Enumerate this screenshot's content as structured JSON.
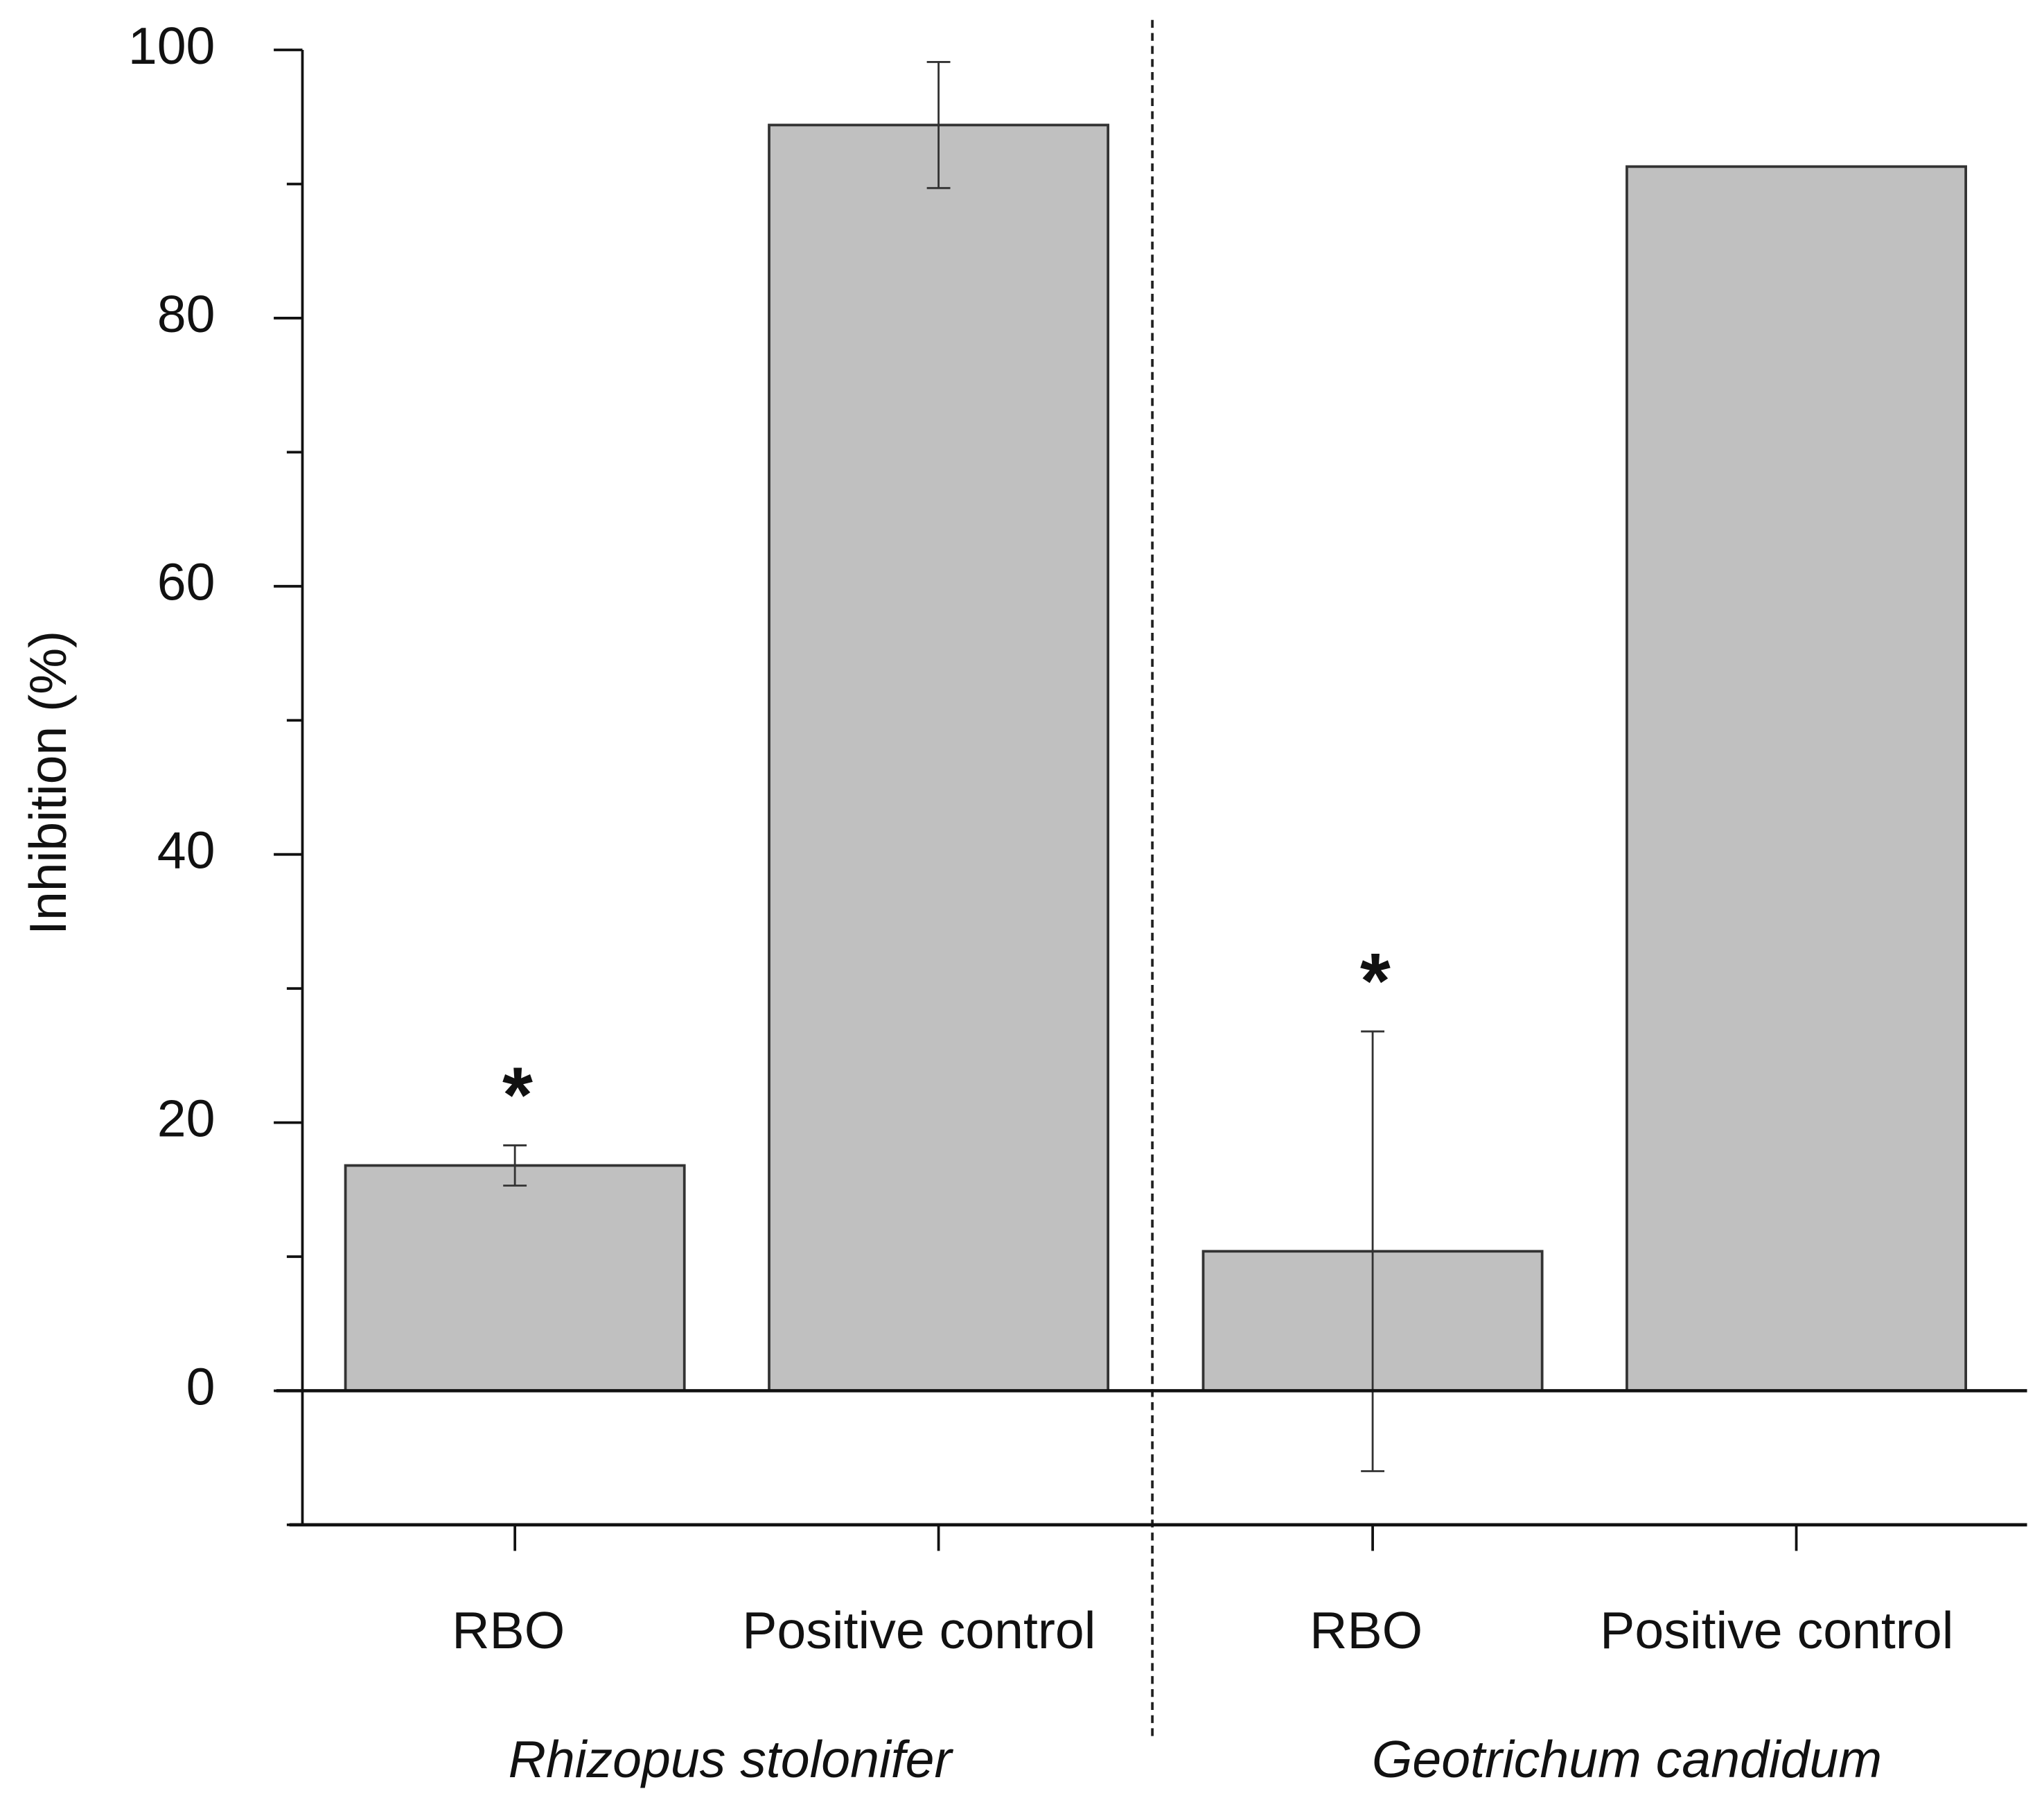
{
  "chart_data": {
    "type": "bar",
    "y_label": "Inhibition (%)",
    "categories": [
      "RBO",
      "Positive control",
      "RBO",
      "Positive control"
    ],
    "groups": [
      "Rhizopus stolonifer",
      "Geotrichum candidum"
    ],
    "values": [
      16.8,
      94.4,
      10.4,
      91.3
    ],
    "errors": [
      1.5,
      4.7,
      16.4,
      null
    ],
    "markers": [
      "*",
      null,
      "*",
      null
    ],
    "color": "#c0c0c0",
    "ylim": [
      -10,
      100
    ],
    "yticks": [
      0,
      20,
      40,
      60,
      80,
      100
    ],
    "minor_yticks": [
      -10,
      10,
      30,
      50,
      70,
      90
    ]
  }
}
